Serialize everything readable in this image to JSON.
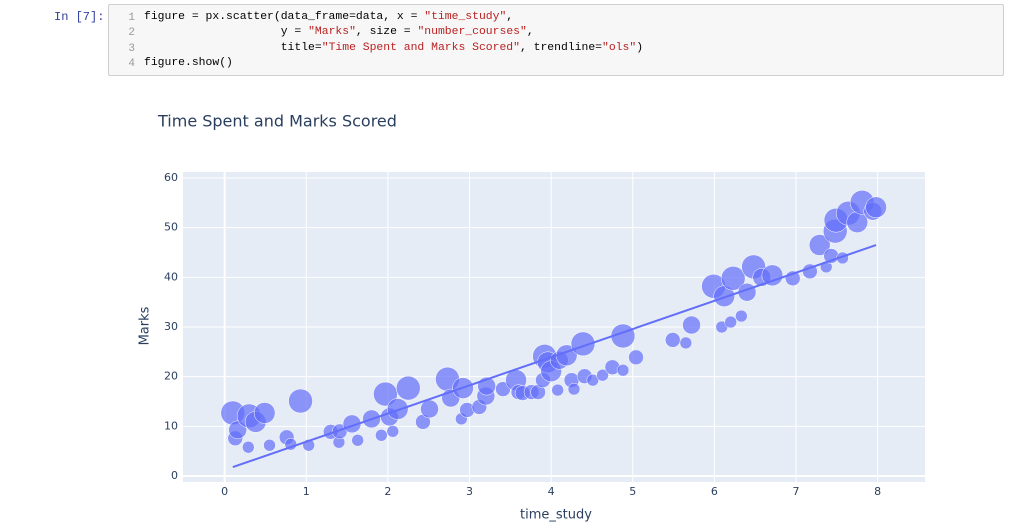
{
  "cell": {
    "prompt": "In [7]:",
    "line_numbers": [
      1,
      2,
      3,
      4
    ],
    "lines": [
      [
        "figure = px.scatter(data_frame=data, x = ",
        "\"time_study\"",
        ","
      ],
      [
        "                    y = ",
        "\"Marks\"",
        ", size = ",
        "\"number_courses\"",
        ","
      ],
      [
        "                    title=",
        "\"Time Spent and Marks Scored\"",
        ", trendline=",
        "\"ols\"",
        ")"
      ],
      [
        "figure.show()"
      ]
    ]
  },
  "chart_data": {
    "type": "scatter",
    "title": "Time Spent and Marks Scored",
    "x_label": "time_study",
    "y_label": "Marks",
    "color": "#636efa",
    "background": "#e5ecf6",
    "grid": true,
    "xlim": [
      -0.51,
      8.58
    ],
    "ylim": [
      -1.2,
      61.2
    ],
    "xticks": [
      0,
      1,
      2,
      3,
      4,
      5,
      6,
      7,
      8
    ],
    "yticks": [
      0,
      10,
      20,
      30,
      40,
      50,
      60
    ],
    "x": [
      0.1,
      0.13,
      0.16,
      0.29,
      0.3,
      0.38,
      0.49,
      0.55,
      0.76,
      0.81,
      0.93,
      1.03,
      1.3,
      1.4,
      1.41,
      1.56,
      1.63,
      1.8,
      1.92,
      1.97,
      2.02,
      2.06,
      2.12,
      2.25,
      2.43,
      2.51,
      2.73,
      2.77,
      2.9,
      2.92,
      2.97,
      3.12,
      3.2,
      3.21,
      3.41,
      3.57,
      3.6,
      3.65,
      3.76,
      3.84,
      3.9,
      3.92,
      3.96,
      4.0,
      4.08,
      4.1,
      4.19,
      4.25,
      4.28,
      4.39,
      4.41,
      4.51,
      4.63,
      4.75,
      4.88,
      4.88,
      5.04,
      5.49,
      5.65,
      5.72,
      5.99,
      6.09,
      6.12,
      6.2,
      6.23,
      6.33,
      6.4,
      6.48,
      6.58,
      6.71,
      6.96,
      7.17,
      7.29,
      7.37,
      7.43,
      7.48,
      7.49,
      7.57,
      7.64,
      7.75,
      7.81,
      7.94,
      7.98
    ],
    "values": [
      12.7,
      7.6,
      9.3,
      5.8,
      12.1,
      10.9,
      12.7,
      6.2,
      7.8,
      6.4,
      15.1,
      6.2,
      8.9,
      6.8,
      9,
      10.5,
      7.2,
      11.5,
      8.2,
      16.5,
      11.9,
      9,
      13.5,
      17.7,
      10.9,
      13.5,
      19.5,
      15.7,
      11.5,
      17.7,
      13.3,
      13.9,
      16.1,
      18.1,
      17.5,
      19.3,
      16.9,
      16.7,
      16.9,
      16.9,
      19.3,
      24.1,
      22.9,
      21.1,
      17.3,
      23.3,
      24.3,
      19.3,
      17.5,
      26.6,
      20.1,
      19.3,
      20.3,
      21.9,
      21.3,
      28.2,
      23.9,
      27.4,
      26.8,
      30.4,
      38.2,
      30,
      36.2,
      31,
      39.8,
      32.2,
      37,
      42.1,
      40,
      40.4,
      39.8,
      41.2,
      46.5,
      42.1,
      44.3,
      49.3,
      51.5,
      43.9,
      52.9,
      51.1,
      55.1,
      53.3,
      54.1
    ],
    "sizes": [
      8,
      5,
      6,
      4,
      8,
      7,
      7,
      4,
      5,
      4,
      8,
      4,
      5,
      4,
      5,
      6,
      4,
      6,
      4,
      8,
      6,
      4,
      7,
      8,
      5,
      6,
      8,
      6,
      4,
      7,
      5,
      5,
      6,
      6,
      5,
      7,
      5,
      5,
      5,
      5,
      5,
      8,
      7,
      7,
      4,
      6,
      7,
      5,
      4,
      8,
      5,
      4,
      4,
      5,
      4,
      8,
      5,
      5,
      4,
      6,
      8,
      4,
      7,
      4,
      8,
      4,
      6,
      8,
      6,
      7,
      5,
      5,
      7,
      4,
      5,
      8,
      8,
      4,
      8,
      7,
      8,
      6,
      7
    ],
    "trendline": {
      "x": [
        0.1,
        7.98
      ],
      "values": [
        1.8,
        46.5
      ]
    }
  }
}
